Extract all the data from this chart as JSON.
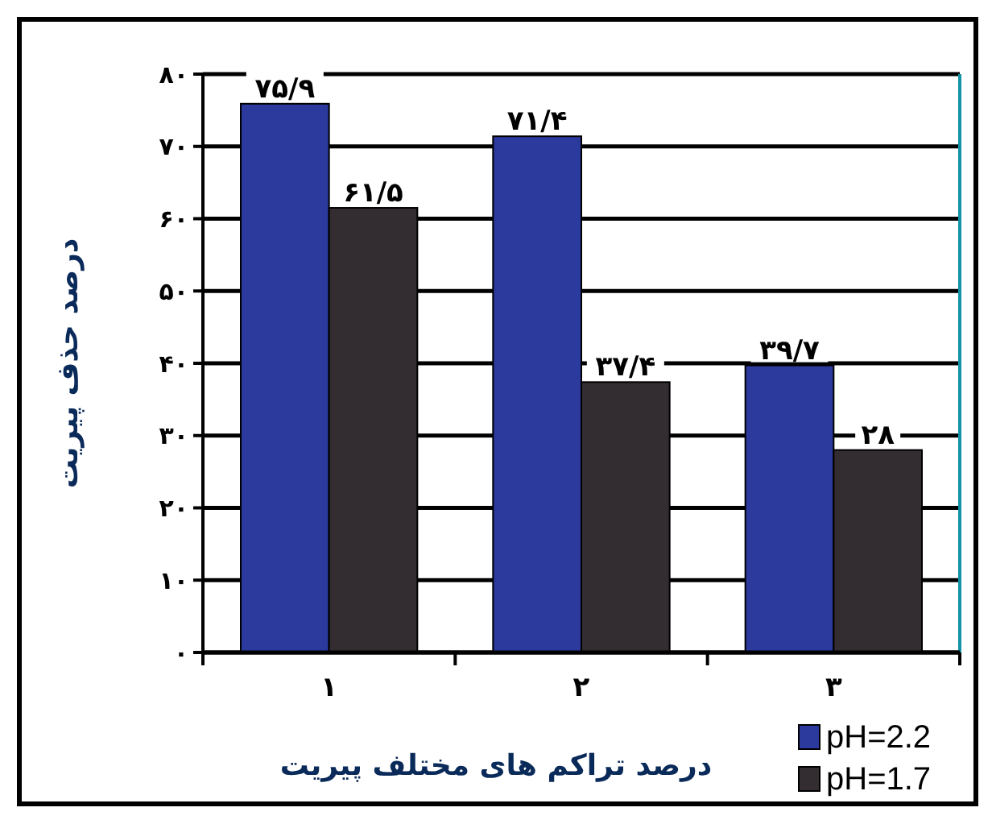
{
  "chart_data": {
    "type": "bar",
    "xlabel": "درصد تراکم های مختلف پیریت",
    "ylabel": "درصد حذف پیریت",
    "categories": [
      "۱",
      "۲",
      "۳"
    ],
    "series": [
      {
        "name": "pH=2.2",
        "color": "#2b3a9c",
        "values": [
          75.9,
          71.4,
          39.7
        ],
        "value_labels": [
          "۷۵/۹",
          "۷۱/۴",
          "۳۹/۷"
        ]
      },
      {
        "name": "pH=1.7",
        "color": "#332c30",
        "values": [
          61.5,
          37.4,
          28
        ],
        "value_labels": [
          "۶۱/۵",
          "۳۷/۴",
          "۲۸"
        ]
      }
    ],
    "ylim": [
      0,
      80
    ],
    "yticks": [
      {
        "value": 0,
        "label": "۰"
      },
      {
        "value": 10,
        "label": "۱۰"
      },
      {
        "value": 20,
        "label": "۲۰"
      },
      {
        "value": 30,
        "label": "۳۰"
      },
      {
        "value": 40,
        "label": "۴۰"
      },
      {
        "value": 50,
        "label": "۵۰"
      },
      {
        "value": 60,
        "label": "۶۰"
      },
      {
        "value": 70,
        "label": "۷۰"
      },
      {
        "value": 80,
        "label": "۸۰"
      }
    ],
    "grid": "y",
    "legend": "bottom right"
  }
}
